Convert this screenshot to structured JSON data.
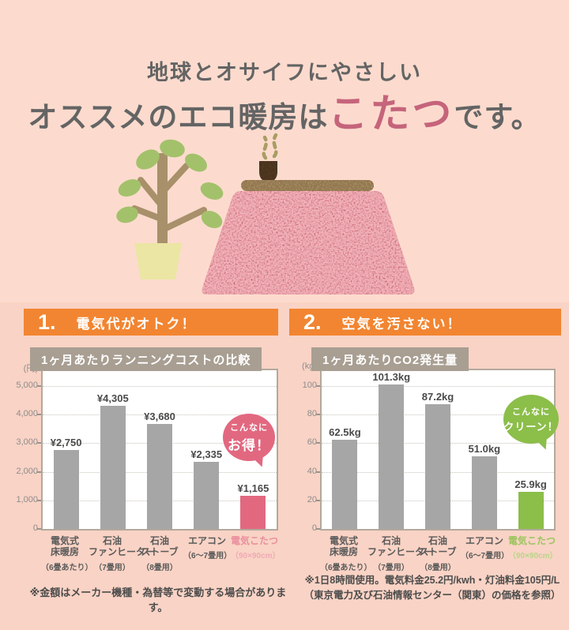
{
  "header": {
    "line1": "地球とオサイフにやさしい",
    "line2_prefix": "オススメのエコ暖房は",
    "line2_highlight": "こたつ",
    "line2_suffix": "です。"
  },
  "sections": [
    {
      "number": "1.",
      "title": "電気代がオトク！"
    },
    {
      "number": "2.",
      "title": "空気を汚さない！"
    }
  ],
  "illustration": {
    "items": [
      "potted-plant",
      "kotatsu-with-pink-blanket",
      "teacup-with-steam"
    ]
  },
  "colors": {
    "background_top": "#fcdbce",
    "background_bottom": "#f9d3c5",
    "section_header_orange": "#f28531",
    "headline_gray": "#646464",
    "headline_pink": "#c5647b",
    "chart_tab_taupe": "#a89e92",
    "bar_gray": "#a6a6a6",
    "kotatsu_pink": "#e26880",
    "eco_green": "#8cbe4a"
  },
  "chart_data": [
    {
      "type": "bar",
      "title": "1ヶ月あたりランニングコストの比較",
      "ylabel": "(円)",
      "axis_max": 5000,
      "ylim": [
        0,
        5000
      ],
      "grid": true,
      "ytick_values": [
        5000,
        4000,
        3000,
        2000,
        1000,
        0
      ],
      "ytick_labels": [
        "5,000",
        "4,000",
        "3,000",
        "2,000",
        "1,000",
        "0"
      ],
      "values": [
        2750,
        4305,
        3680,
        2335,
        1165
      ],
      "value_labels": [
        "¥2,750",
        "¥4,305",
        "¥3,680",
        "¥2,335",
        "¥1,165"
      ],
      "categories": [
        {
          "lines": [
            "電気式",
            "床暖房"
          ],
          "note": "（6畳あたり）"
        },
        {
          "lines": [
            "石油",
            "ファンヒーター"
          ],
          "note": "（7畳用）"
        },
        {
          "lines": [
            "石油",
            "ストーブ"
          ],
          "note": "（8畳用）"
        },
        {
          "lines": [
            "エアコン"
          ],
          "note": "（6〜7畳用）"
        },
        {
          "lines": [
            "電気こたつ"
          ],
          "note": "（90×90cm）"
        }
      ],
      "highlight_index": 4,
      "bar_color": "#a6a6a6",
      "highlight_color": "#e26880",
      "category_highlight_color": "#e98f9d",
      "category_highlight_note_color": "#f0aab4",
      "bubble": {
        "lines": [
          "こんなに",
          "お得！"
        ],
        "color": "#e26880"
      }
    },
    {
      "type": "bar",
      "title": "1ヶ月あたりCO2発生量",
      "ylabel": "(kg)",
      "axis_max": 100,
      "ylim": [
        0,
        100
      ],
      "grid": true,
      "ytick_values": [
        100,
        80,
        60,
        40,
        20,
        0
      ],
      "ytick_labels": [
        "100",
        "80",
        "60",
        "40",
        "20",
        "0"
      ],
      "values": [
        62.5,
        101.3,
        87.2,
        51.0,
        25.9
      ],
      "value_labels": [
        "62.5kg",
        "101.3kg",
        "87.2kg",
        "51.0kg",
        "25.9kg"
      ],
      "categories": [
        {
          "lines": [
            "電気式",
            "床暖房"
          ],
          "note": "（6畳あたり）"
        },
        {
          "lines": [
            "石油",
            "ファンヒーター"
          ],
          "note": "（7畳用）"
        },
        {
          "lines": [
            "石油",
            "ストーブ"
          ],
          "note": "（8畳用）"
        },
        {
          "lines": [
            "エアコン"
          ],
          "note": "（6〜7畳用）"
        },
        {
          "lines": [
            "電気こたつ"
          ],
          "note": "（90×90cm）"
        }
      ],
      "highlight_index": 4,
      "bar_color": "#a6a6a6",
      "highlight_color": "#8cbe4a",
      "category_highlight_color": "#9dc45f",
      "category_highlight_note_color": "#b9d589",
      "bubble": {
        "lines": [
          "こんなに",
          "クリーン！"
        ],
        "color": "#8cbe4a"
      }
    }
  ],
  "footnotes": {
    "left": "※金額はメーカー機種・為替等で変動する場合があります。",
    "right_line1": "※1日8時間使用。電気料金25.2円/kwh・灯油料金105円/L",
    "right_line2": "（東京電力及び石油情報センター（関東）の価格を参照）"
  }
}
